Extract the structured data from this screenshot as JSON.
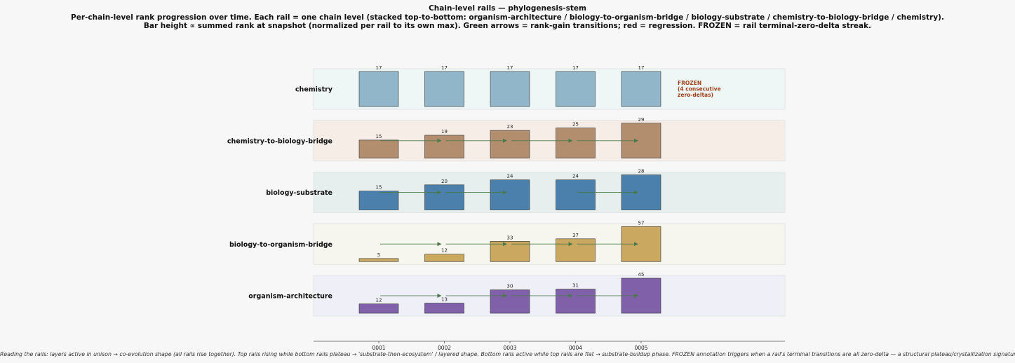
{
  "header": {
    "title": "Chain-level rails — phylogenesis-stem",
    "subtitle1": "Per-chain-level rank progression over time. Each rail = one chain level (stacked top-to-bottom: organism-architecture / biology-to-organism-bridge / biology-substrate / chemistry-to-biology-bridge / chemistry).",
    "subtitle2": "Bar height ∝ summed rank at snapshot (normalized per rail to its own max). Green arrows = rank-gain transitions; red = regression. FROZEN = rail terminal-zero-delta streak."
  },
  "footer": {
    "note": "Reading the rails: layers active in unison → co-evolution shape (all rails rise together).  Top rails rising while bottom rails plateau → 'substrate-then-ecosystem' / layered shape.  Bottom rails active while top rails are flat → substrate-buildup phase. FROZEN annotation triggers when a rail's terminal transitions are all zero-delta — a structural plateau/crystallization signature."
  },
  "chart_data": {
    "type": "bar",
    "categories": [
      "0001",
      "0002",
      "0003",
      "0004",
      "0005"
    ],
    "normalization": "per rail to its own max",
    "arrow_legend": {
      "gain": "#4a7a4a",
      "regression": "#c0392b"
    },
    "rails": [
      {
        "name": "chemistry",
        "values": [
          17,
          17,
          17,
          17,
          17
        ],
        "bar_color": "#92b6c9",
        "band_color": "#eef7f6",
        "annotation": {
          "line1": "FROZEN",
          "line2": "(4 consecutive",
          "line3": "zero-deltas)",
          "color": "#a0401a"
        }
      },
      {
        "name": "chemistry-to-biology-bridge",
        "values": [
          15,
          19,
          23,
          25,
          29
        ],
        "bar_color": "#b38e6e",
        "band_color": "#f6ede7"
      },
      {
        "name": "biology-substrate",
        "values": [
          15,
          20,
          24,
          24,
          28
        ],
        "bar_color": "#4a80ab",
        "band_color": "#e6efee"
      },
      {
        "name": "biology-to-organism-bridge",
        "values": [
          5,
          12,
          33,
          37,
          57
        ],
        "bar_color": "#cba85f",
        "band_color": "#f7f6ee"
      },
      {
        "name": "organism-architecture",
        "values": [
          12,
          13,
          30,
          31,
          45
        ],
        "bar_color": "#8061a9",
        "band_color": "#efeff8"
      }
    ]
  }
}
